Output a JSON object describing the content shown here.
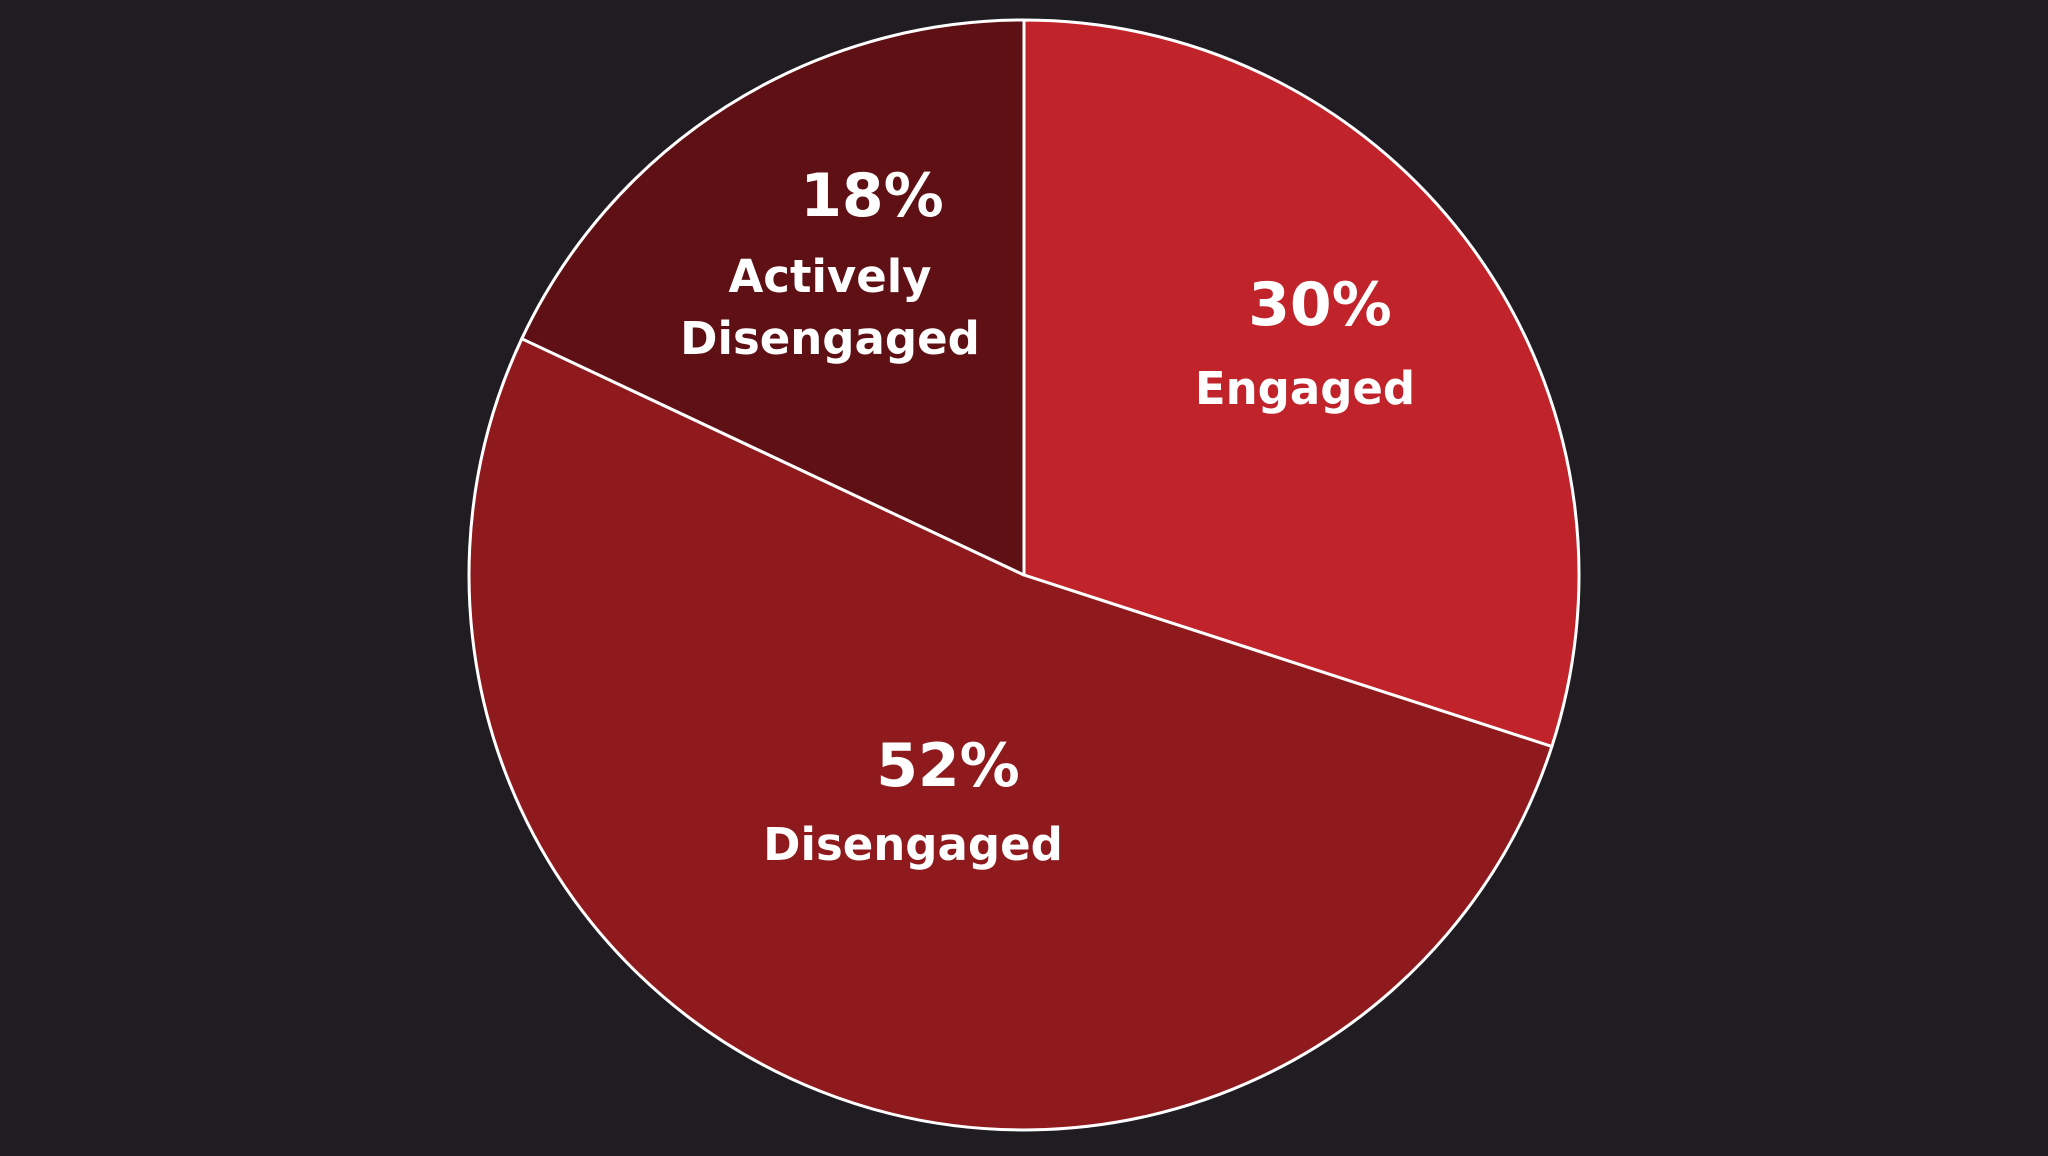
{
  "chart_data": {
    "type": "pie",
    "title": "",
    "start_angle_deg": 0,
    "direction": "clockwise",
    "slices": [
      {
        "name": "Engaged",
        "value": 30,
        "value_label": "30%",
        "label_lines": [
          "Engaged"
        ],
        "color": "#c1232a"
      },
      {
        "name": "Disengaged",
        "value": 52,
        "value_label": "52%",
        "label_lines": [
          "Disengaged"
        ],
        "color": "#8f1a1e"
      },
      {
        "name": "Actively Disengaged",
        "value": 18,
        "value_label": "18%",
        "label_lines": [
          "Actively",
          "Disengaged"
        ],
        "color": "#5e1015"
      }
    ]
  },
  "colors": {
    "background": "#1f1d21",
    "slice_border": "#ffffff",
    "text": "#ffffff"
  }
}
